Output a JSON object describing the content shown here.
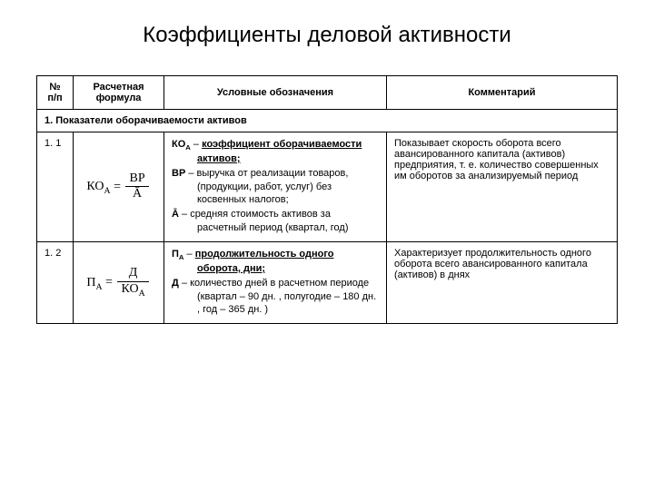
{
  "title": "Коэффициенты деловой активности",
  "headers": {
    "num": "№ п/п",
    "formula": "Расчетная формула",
    "notation": "Условные обозначения",
    "comment": "Комментарий"
  },
  "section1": "1. Показатели оборачиваемости активов",
  "rows": [
    {
      "num": "1. 1",
      "formula_left": "КО",
      "formula_left_sub": "А",
      "formula_num": "ВР",
      "formula_den": "Ā",
      "notations": [
        {
          "label": "КО",
          "sub": "А",
          "dash": " – ",
          "text_bold_u": "коэффициент оборачиваемости активов;",
          "text": ""
        },
        {
          "label": "ВР",
          "sub": "",
          "dash": " – ",
          "text_bold_u": "",
          "text": "выручка от реализации товаров, (продукции, работ, услуг) без косвенных налогов;"
        },
        {
          "label": "Ā",
          "sub": "",
          "dash": " – ",
          "text_bold_u": "",
          "text": "средняя стоимость активов за расчетный период (квартал, год)"
        }
      ],
      "comment": "Показывает скорость оборота всего авансированного капитала (активов) предприятия, т. е. количество совершенных им оборотов за анализируемый период"
    },
    {
      "num": "1. 2",
      "formula_left": "П",
      "formula_left_sub": "А",
      "formula_num": "Д",
      "formula_den_label": "КО",
      "formula_den_sub": "А",
      "notations": [
        {
          "label": "П",
          "sub": "А",
          "dash": " – ",
          "text_bold_u": "продолжительность одного оборота, дни;",
          "text": ""
        },
        {
          "label": "Д",
          "sub": "",
          "dash": " – ",
          "text_bold_u": "",
          "text": "количество дней в расчетном периоде (квартал – 90 дн. , полугодие – 180 дн. , год – 365 дн. )"
        }
      ],
      "comment": "Характеризует продолжительность одного оборота всего авансированного капитала (активов) в днях"
    }
  ],
  "style": {
    "background": "#ffffff",
    "border_color": "#000000",
    "title_fontsize": 24,
    "body_fontsize": 11,
    "formula_fontsize": 14
  }
}
